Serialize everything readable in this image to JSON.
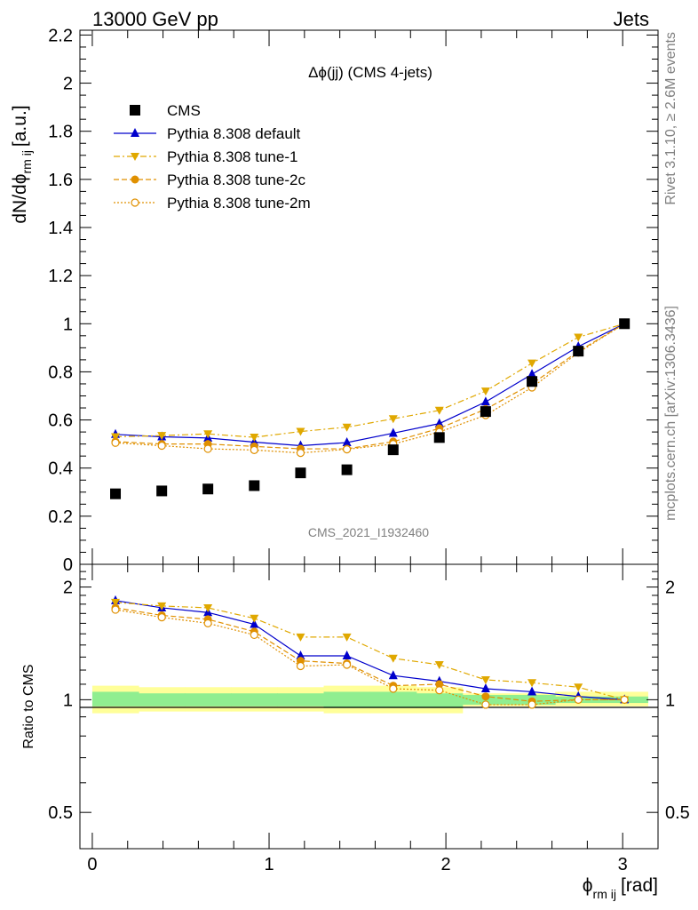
{
  "header": {
    "left": "13000 GeV pp",
    "right": "Jets"
  },
  "side_labels": {
    "rivet": "Rivet 3.1.10, ≥ 2.6M events",
    "mcplots": "mcplots.cern.ch [arXiv:1306.3436]"
  },
  "chart_data": [
    {
      "type": "scatter",
      "title": "Δϕ(jj) (CMS 4-jets)",
      "watermark": "CMS_2021_I1932460",
      "ylabel": "dN/dϕ",
      "ylabel_sub": "rm ij",
      "ylabel_unit": "[a.u.]",
      "ylim": [
        0,
        2.22
      ],
      "yticks": [
        0,
        0.2,
        0.4,
        0.6,
        0.8,
        1,
        1.2,
        1.4,
        1.6,
        1.8,
        2,
        2.2
      ],
      "ytick_labels": [
        "0",
        "0.2",
        "0.4",
        "0.6",
        "0.8",
        "1",
        "1.2",
        "1.4",
        "1.6",
        "1.8",
        "2",
        "2.2"
      ],
      "xlim": [
        -0.07,
        3.2
      ],
      "legend_position": "top-left",
      "x": [
        0.131,
        0.393,
        0.654,
        0.916,
        1.178,
        1.44,
        1.702,
        1.963,
        2.225,
        2.487,
        2.749,
        3.01
      ],
      "series": [
        {
          "name": "CMS",
          "color": "#000000",
          "marker": "square",
          "line": "none",
          "values": [
            0.293,
            0.305,
            0.313,
            0.327,
            0.38,
            0.393,
            0.476,
            0.527,
            0.635,
            0.76,
            0.886,
            1.0
          ]
        },
        {
          "name": "Pythia 8.308 default",
          "color": "#0000cc",
          "marker": "triangle-up",
          "line": "solid",
          "values": [
            0.54,
            0.53,
            0.525,
            0.508,
            0.493,
            0.506,
            0.545,
            0.585,
            0.675,
            0.79,
            0.905,
            1.0
          ]
        },
        {
          "name": "Pythia 8.308 tune-1",
          "color": "#e0a800",
          "marker": "triangle-down",
          "line": "dashdot",
          "values": [
            0.53,
            0.535,
            0.542,
            0.528,
            0.552,
            0.57,
            0.605,
            0.64,
            0.72,
            0.836,
            0.944,
            1.0
          ]
        },
        {
          "name": "Pythia 8.308 tune-2c",
          "color": "#e09000",
          "marker": "circle",
          "line": "dashed",
          "values": [
            0.51,
            0.5,
            0.5,
            0.49,
            0.48,
            0.48,
            0.51,
            0.565,
            0.645,
            0.75,
            0.885,
            1.0
          ]
        },
        {
          "name": "Pythia 8.308 tune-2m",
          "color": "#e09000",
          "marker": "circle-open",
          "line": "dotted",
          "values": [
            0.505,
            0.493,
            0.48,
            0.475,
            0.463,
            0.478,
            0.5,
            0.55,
            0.62,
            0.735,
            0.88,
            1.0
          ]
        }
      ]
    },
    {
      "type": "line",
      "ylabel": "Ratio to CMS",
      "xlabel": "ϕ",
      "xlabel_sub": "rm ij",
      "xlabel_unit": "[rad]",
      "yscale": "log",
      "ylim": [
        0.4,
        2.3
      ],
      "yticks": [
        0.5,
        1,
        2
      ],
      "ytick_labels": [
        "0.5",
        "1",
        "2"
      ],
      "xlim": [
        -0.07,
        3.2
      ],
      "xticks": [
        0,
        1,
        2,
        3
      ],
      "xtick_labels": [
        "0",
        "1",
        "2",
        "3"
      ],
      "reference_line": 1,
      "x": [
        0.131,
        0.393,
        0.654,
        0.916,
        1.178,
        1.44,
        1.702,
        1.963,
        2.225,
        2.487,
        2.749,
        3.01
      ],
      "series": [
        {
          "name": "Pythia 8.308 default",
          "values": [
            1.84,
            1.76,
            1.71,
            1.59,
            1.31,
            1.31,
            1.16,
            1.12,
            1.07,
            1.05,
            1.02,
            1.0
          ]
        },
        {
          "name": "Pythia 8.308 tune-1",
          "values": [
            1.82,
            1.78,
            1.76,
            1.65,
            1.47,
            1.47,
            1.29,
            1.24,
            1.13,
            1.11,
            1.08,
            1.0
          ]
        },
        {
          "name": "Pythia 8.308 tune-2c",
          "values": [
            1.76,
            1.68,
            1.64,
            1.52,
            1.27,
            1.25,
            1.09,
            1.1,
            1.02,
            0.99,
            1.0,
            1.0
          ]
        },
        {
          "name": "Pythia 8.308 tune-2m",
          "values": [
            1.74,
            1.66,
            1.6,
            1.49,
            1.23,
            1.24,
            1.07,
            1.06,
            0.97,
            0.97,
            1.0,
            1.0
          ]
        }
      ],
      "bands": {
        "bin_edges": [
          0,
          0.262,
          0.524,
          0.785,
          1.047,
          1.309,
          1.571,
          1.833,
          2.094,
          2.356,
          2.618,
          2.88,
          3.142
        ],
        "inner_color": "#90ee90",
        "outer_color": "#ffff99",
        "inner": [
          [
            0.96,
            1.05
          ],
          [
            0.96,
            1.04
          ],
          [
            0.96,
            1.04
          ],
          [
            0.96,
            1.04
          ],
          [
            0.96,
            1.04
          ],
          [
            0.95,
            1.05
          ],
          [
            0.95,
            1.05
          ],
          [
            0.95,
            1.04
          ],
          [
            0.97,
            1.03
          ],
          [
            0.97,
            1.03
          ],
          [
            0.98,
            1.02
          ],
          [
            0.98,
            1.02
          ]
        ],
        "outer": [
          [
            0.92,
            1.09
          ],
          [
            0.93,
            1.08
          ],
          [
            0.93,
            1.08
          ],
          [
            0.93,
            1.08
          ],
          [
            0.93,
            1.08
          ],
          [
            0.92,
            1.09
          ],
          [
            0.92,
            1.09
          ],
          [
            0.92,
            1.08
          ],
          [
            0.96,
            1.04
          ],
          [
            0.96,
            1.04
          ],
          [
            0.96,
            1.05
          ],
          [
            0.96,
            1.05
          ]
        ]
      }
    }
  ]
}
